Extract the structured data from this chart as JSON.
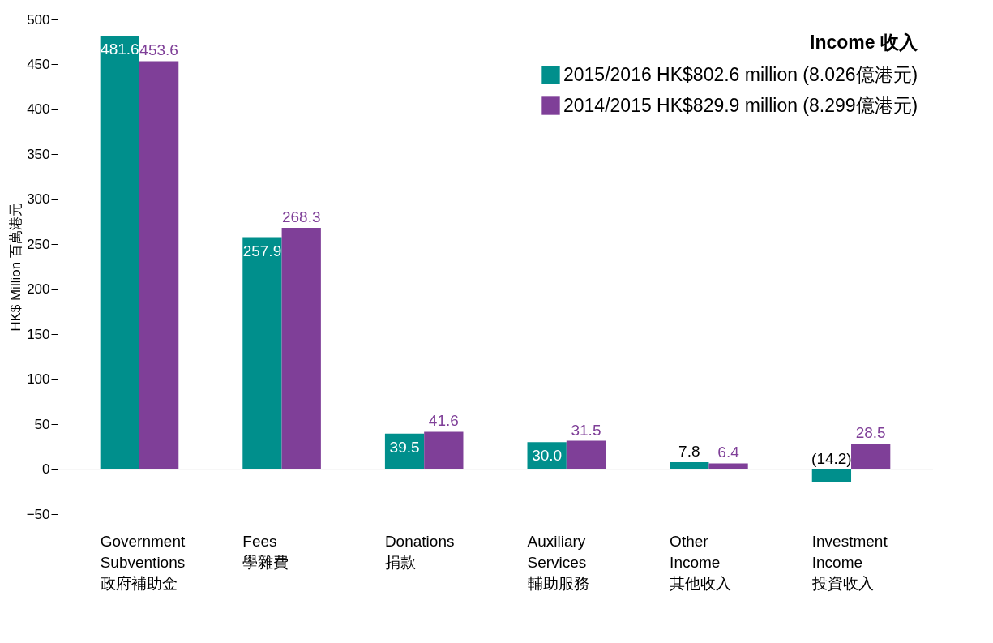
{
  "chart_data": {
    "type": "bar",
    "categories": [
      "Government\nSubventions\n政府補助金",
      "Fees\n學雜費",
      "Donations\n捐款",
      "Auxiliary\nServices\n輔助服務",
      "Other\nIncome\n其他收入",
      "Investment\nIncome\n投資收入"
    ],
    "series": [
      {
        "name": "2015/2016 HK$802.6 million (8.026億港元)",
        "color": "#008f8c",
        "values": [
          481.6,
          257.9,
          39.5,
          30.0,
          7.8,
          -14.2
        ],
        "value_labels": [
          "481.6",
          "257.9",
          "39.5",
          "30.0",
          "7.8",
          "(14.2)"
        ]
      },
      {
        "name": "2014/2015 HK$829.9 million (8.299億港元)",
        "color": "#7f3f98",
        "values": [
          453.6,
          268.3,
          41.6,
          31.5,
          6.4,
          28.5
        ],
        "value_labels": [
          "453.6",
          "268.3",
          "41.6",
          "31.5",
          "6.4",
          "28.5"
        ]
      }
    ],
    "ylabel": "HK$ Million 百萬港元",
    "legend_title": "Income 收入",
    "legend": "top right",
    "ylim": [
      -50,
      500
    ],
    "yticks": [
      -50,
      0,
      50,
      100,
      150,
      200,
      250,
      300,
      350,
      400,
      450,
      500
    ],
    "ref_lines": [
      {
        "axis": "y",
        "value": 0,
        "color": "#000000"
      }
    ],
    "grid": false
  }
}
